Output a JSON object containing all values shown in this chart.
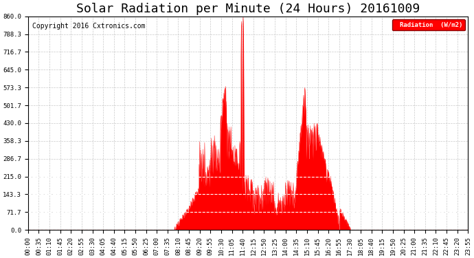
{
  "title": "Solar Radiation per Minute (24 Hours) 20161009",
  "copyright_text": "Copyright 2016 Cxtronics.com",
  "legend_label": "Radiation  (W/m2)",
  "ylabel_values": [
    0.0,
    71.7,
    143.3,
    215.0,
    286.7,
    358.3,
    430.0,
    501.7,
    573.3,
    645.0,
    716.7,
    788.3,
    860.0
  ],
  "ymax": 860.0,
  "ymin": 0.0,
  "fill_color": "#FF0000",
  "line_color": "#FF0000",
  "background_color": "#FFFFFF",
  "grid_color": "#BBBBBB",
  "title_fontsize": 13,
  "copyright_fontsize": 7,
  "tick_fontsize": 6.5,
  "white_hlines": [
    71.7,
    143.3,
    215.0
  ],
  "xtick_labels": [
    "00:00",
    "00:35",
    "01:10",
    "01:45",
    "02:20",
    "02:55",
    "03:30",
    "04:05",
    "04:40",
    "05:15",
    "05:50",
    "06:25",
    "07:00",
    "07:35",
    "08:10",
    "08:45",
    "09:20",
    "09:55",
    "10:30",
    "11:05",
    "11:40",
    "12:15",
    "12:50",
    "13:25",
    "14:00",
    "14:35",
    "15:10",
    "15:45",
    "16:20",
    "16:55",
    "17:30",
    "18:05",
    "18:40",
    "19:15",
    "19:50",
    "20:25",
    "21:00",
    "21:35",
    "22:10",
    "22:45",
    "23:20",
    "23:55"
  ]
}
